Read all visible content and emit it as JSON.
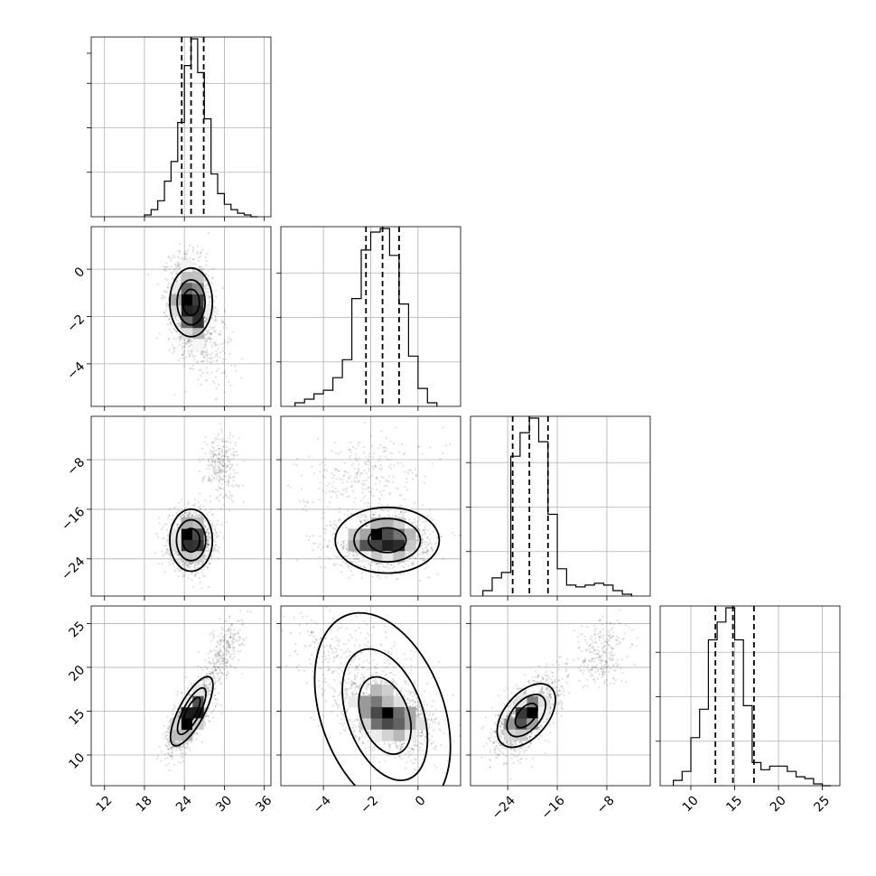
{
  "chart_data": {
    "type": "corner",
    "title": "",
    "grid": true,
    "parameters": [
      {
        "name": "",
        "range": [
          10,
          37
        ],
        "ticks": [
          12,
          18,
          24,
          30,
          36
        ],
        "tick_labels": [
          "12",
          "18",
          "24",
          "30",
          "36"
        ],
        "quantiles": [
          23.6,
          25.0,
          26.9
        ],
        "histogram": {
          "bins": [
            18,
            19,
            20,
            21,
            22,
            23,
            24,
            25,
            26,
            27,
            28,
            29,
            30,
            31,
            32,
            33,
            34,
            35
          ],
          "counts": [
            0.01,
            0.04,
            0.09,
            0.2,
            0.31,
            0.53,
            0.85,
            1.0,
            0.81,
            0.55,
            0.24,
            0.13,
            0.07,
            0.04,
            0.02,
            0.01,
            0
          ]
        }
      },
      {
        "name": "",
        "range": [
          -5.8,
          1.8
        ],
        "ticks": [
          -4,
          -2,
          0
        ],
        "tick_labels": [
          "−4",
          "−2",
          "0"
        ],
        "quantiles": [
          -2.2,
          -1.5,
          -0.8
        ],
        "histogram": {
          "bins": [
            -5.2,
            -4.8,
            -4.4,
            -4.0,
            -3.6,
            -3.2,
            -2.8,
            -2.4,
            -2.0,
            -1.6,
            -1.2,
            -0.8,
            -0.4,
            0.0,
            0.4,
            0.8
          ],
          "counts": [
            0.02,
            0.04,
            0.07,
            0.09,
            0.16,
            0.26,
            0.6,
            0.87,
            0.97,
            0.99,
            0.84,
            0.57,
            0.28,
            0.1,
            0.02
          ]
        }
      },
      {
        "name": "",
        "range": [
          -30,
          -1
        ],
        "ticks": [
          -24,
          -16,
          -8
        ],
        "tick_labels": [
          "−24",
          "−16",
          "−8"
        ],
        "quantiles": [
          -23.2,
          -20.5,
          -17.5
        ],
        "histogram": {
          "bins": [
            -28,
            -26.5,
            -25,
            -23.5,
            -22,
            -20.5,
            -19,
            -17.5,
            -16,
            -14.5,
            -13,
            -11.5,
            -10,
            -8.5,
            -7,
            -5.5,
            -4
          ],
          "counts": [
            0.03,
            0.1,
            0.13,
            0.77,
            0.9,
            0.98,
            0.85,
            0.45,
            0.15,
            0.06,
            0.05,
            0.06,
            0.07,
            0.06,
            0.03,
            0.01
          ]
        }
      },
      {
        "name": "",
        "range": [
          6.5,
          27
        ],
        "ticks": [
          10,
          15,
          20,
          25
        ],
        "tick_labels": [
          "10",
          "15",
          "20",
          "25"
        ],
        "quantiles": [
          12.8,
          14.8,
          17.2
        ],
        "histogram": {
          "bins": [
            8,
            9,
            10,
            11,
            12,
            13,
            14,
            15,
            16,
            17,
            18,
            19,
            20,
            21,
            22,
            23,
            24,
            25,
            26
          ],
          "counts": [
            0.03,
            0.08,
            0.27,
            0.43,
            0.82,
            0.92,
            1.0,
            0.82,
            0.45,
            0.13,
            0.09,
            0.11,
            0.11,
            0.08,
            0.05,
            0.04,
            0.01,
            0.0
          ]
        }
      }
    ],
    "pairs": [
      {
        "row": 1,
        "col": 0,
        "components": [
          {
            "weight": 0.9,
            "mean": [
              25.0,
              -1.5
            ],
            "sd": [
              1.6,
              1.0
            ],
            "rho": -0.2
          },
          {
            "weight": 0.1,
            "mean": [
              27.5,
              -3.0
            ],
            "sd": [
              2.0,
              1.0
            ],
            "rho": -0.3
          }
        ],
        "contours": [
          {
            "center": [
              25.0,
              -1.4
            ],
            "radii": [
              3.2,
              1.45
            ],
            "rotation": 0
          },
          {
            "center": [
              25.0,
              -1.4
            ],
            "radii": [
              2.1,
              0.95
            ],
            "rotation": 0
          },
          {
            "center": [
              25.0,
              -1.4
            ],
            "radii": [
              1.25,
              0.55
            ],
            "rotation": 0
          }
        ]
      },
      {
        "row": 2,
        "col": 0,
        "components": [
          {
            "weight": 0.85,
            "mean": [
              25.0,
              -21.0
            ],
            "sd": [
              1.6,
              2.2
            ],
            "rho": 0.0
          },
          {
            "weight": 0.15,
            "mean": [
              29.5,
              -9.0
            ],
            "sd": [
              1.3,
              2.8
            ],
            "rho": 0.0
          }
        ],
        "contours": [
          {
            "center": [
              25.0,
              -21.0
            ],
            "radii": [
              3.2,
              5.0
            ],
            "rotation": 0
          },
          {
            "center": [
              25.0,
              -21.0
            ],
            "radii": [
              2.2,
              3.3
            ],
            "rotation": 0
          },
          {
            "center": [
              25.0,
              -21.0
            ],
            "radii": [
              1.3,
              1.9
            ],
            "rotation": 0
          }
        ]
      },
      {
        "row": 2,
        "col": 1,
        "components": [
          {
            "weight": 0.85,
            "mean": [
              -1.5,
              -21.0
            ],
            "sd": [
              1.0,
              2.2
            ],
            "rho": 0.0
          },
          {
            "weight": 0.15,
            "mean": [
              -2.5,
              -10.0
            ],
            "sd": [
              1.3,
              2.8
            ],
            "rho": 0.3
          }
        ],
        "contours": [
          {
            "center": [
              -1.3,
              -21.0
            ],
            "radii": [
              2.2,
              5.3
            ],
            "rotation": 0
          },
          {
            "center": [
              -1.3,
              -21.0
            ],
            "radii": [
              1.4,
              3.5
            ],
            "rotation": 0
          },
          {
            "center": [
              -1.3,
              -21.0
            ],
            "radii": [
              0.8,
              2.0
            ],
            "rotation": 0
          }
        ]
      },
      {
        "row": 3,
        "col": 0,
        "components": [
          {
            "weight": 0.85,
            "mean": [
              25.0,
              14.5
            ],
            "sd": [
              1.7,
              2.0
            ],
            "rho": 0.75
          },
          {
            "weight": 0.15,
            "mean": [
              30.0,
              22.0
            ],
            "sd": [
              1.4,
              2.0
            ],
            "rho": 0.6
          }
        ],
        "contours": [
          {
            "center": [
              25.1,
              15.0
            ],
            "radii": [
              5.8,
              1.9
            ],
            "rotation": -62
          },
          {
            "center": [
              25.1,
              15.0
            ],
            "radii": [
              3.9,
              1.25
            ],
            "rotation": -62
          },
          {
            "center": [
              25.1,
              15.0
            ],
            "radii": [
              2.3,
              0.75
            ],
            "rotation": -62
          }
        ]
      },
      {
        "row": 3,
        "col": 1,
        "components": [
          {
            "weight": 0.85,
            "mean": [
              -1.3,
              14.5
            ],
            "sd": [
              1.0,
              2.0
            ],
            "rho": -0.4
          },
          {
            "weight": 0.15,
            "mean": [
              -3.0,
              21.5
            ],
            "sd": [
              1.4,
              2.2
            ],
            "rho": -0.3
          }
        ],
        "contours": [
          {
            "center": [
              -1.5,
              14.8
            ],
            "radii": [
              2.6,
              4.4
            ],
            "rotation": -20
          },
          {
            "center": [
              -1.4,
              14.6
            ],
            "radii": [
              1.6,
              2.9
            ],
            "rotation": -20
          },
          {
            "center": [
              -1.4,
              14.5
            ],
            "radii": [
              1.0,
              1.7
            ],
            "rotation": -20
          }
        ]
      },
      {
        "row": 3,
        "col": 2,
        "components": [
          {
            "weight": 0.85,
            "mean": [
              -21.0,
              14.5
            ],
            "sd": [
              2.3,
              2.0
            ],
            "rho": 0.6
          },
          {
            "weight": 0.15,
            "mean": [
              -9.0,
              21.5
            ],
            "sd": [
              2.3,
              2.0
            ],
            "rho": 0.3
          }
        ],
        "contours": [
          {
            "center": [
              -21.0,
              14.5
            ],
            "radii": [
              6.0,
              3.5
            ],
            "rotation": -50
          },
          {
            "center": [
              -21.0,
              14.5
            ],
            "radii": [
              4.0,
              2.3
            ],
            "rotation": -50
          },
          {
            "center": [
              -21.0,
              14.5
            ],
            "radii": [
              2.3,
              1.3
            ],
            "rotation": -50
          }
        ]
      }
    ]
  }
}
